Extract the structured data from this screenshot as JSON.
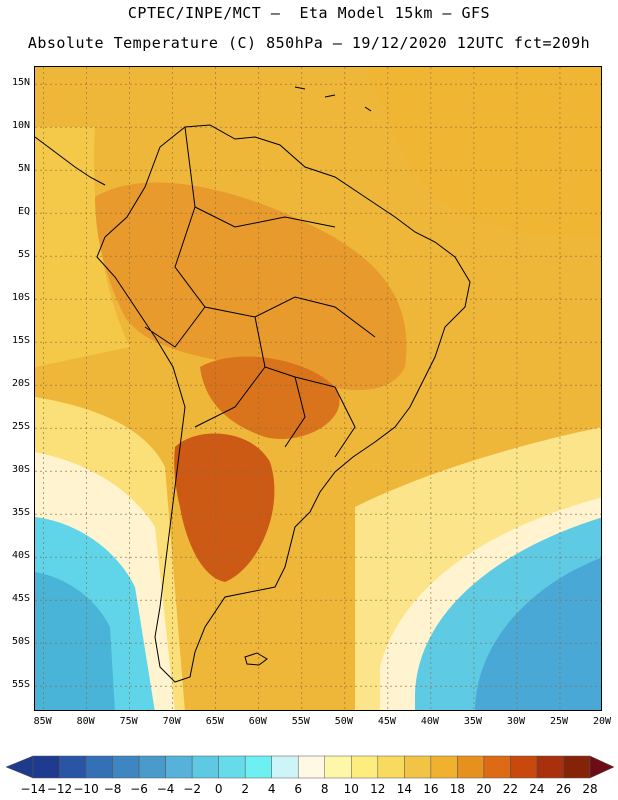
{
  "header": {
    "line1": "CPTEC/INPE/MCT –  Eta Model 15km – GFS",
    "line2": "Absolute Temperature (C) 850hPa – 19/12/2020 12UTC fct=209h"
  },
  "map": {
    "lat_labels": [
      "15N",
      "10N",
      "5N",
      "EQ",
      "5S",
      "10S",
      "15S",
      "20S",
      "25S",
      "30S",
      "35S",
      "40S",
      "45S",
      "50S",
      "55S"
    ],
    "lat_values": [
      15,
      10,
      5,
      0,
      -5,
      -10,
      -15,
      -20,
      -25,
      -30,
      -35,
      -40,
      -45,
      -50,
      -55
    ],
    "lon_labels": [
      "85W",
      "80W",
      "75W",
      "70W",
      "65W",
      "60W",
      "55W",
      "50W",
      "45W",
      "40W",
      "35W",
      "30W",
      "25W",
      "20W"
    ],
    "lon_values": [
      -85,
      -80,
      -75,
      -70,
      -65,
      -60,
      -55,
      -50,
      -45,
      -40,
      -35,
      -30,
      -25,
      -20
    ],
    "lat_range": [
      -58,
      17
    ],
    "lon_range": [
      -86,
      -20
    ],
    "background_color": "#eeb73a"
  },
  "colorbar": {
    "labels": [
      "-14",
      "-12",
      "-10",
      "-8",
      "-6",
      "-4",
      "-2",
      "0",
      "2",
      "4",
      "6",
      "8",
      "10",
      "12",
      "14",
      "16",
      "18",
      "20",
      "22",
      "24",
      "26",
      "28"
    ],
    "colors": [
      "#1f3b8f",
      "#2a55a5",
      "#3370b5",
      "#3d86c2",
      "#4a9bcc",
      "#56b2d8",
      "#5ec9e2",
      "#66dcea",
      "#6ef0f2",
      "#cdf5f8",
      "#fff8e4",
      "#fff7a8",
      "#fdec7e",
      "#f8da5e",
      "#f2c445",
      "#efb12e",
      "#e6911f",
      "#dd6a14",
      "#c8480e",
      "#a8300c",
      "#852308"
    ],
    "left_arrow_color": "#1e3a8a",
    "right_arrow_color": "#6b0d14"
  },
  "regions": [
    {
      "name": "north-atlantic-warm",
      "color": "#f1b534"
    },
    {
      "name": "amazon-warm",
      "color": "#e89a2c"
    },
    {
      "name": "chaco-hot",
      "color": "#d9741c"
    },
    {
      "name": "patagonia-hot",
      "color": "#cc5a14"
    },
    {
      "name": "tropical-pacific-mild",
      "color": "#f4c94a"
    },
    {
      "name": "south-pacific-pale",
      "color": "#fbe07a"
    },
    {
      "name": "south-pacific-cream",
      "color": "#fff4cf"
    },
    {
      "name": "south-pacific-cold",
      "color": "#60d4e8"
    },
    {
      "name": "south-pacific-colder",
      "color": "#4ab3d8"
    },
    {
      "name": "south-atlantic-pale",
      "color": "#fce48a"
    },
    {
      "name": "south-atlantic-cream",
      "color": "#fff4cf"
    },
    {
      "name": "south-atlantic-cold",
      "color": "#5ecae4"
    },
    {
      "name": "south-atlantic-colder",
      "color": "#4aa8d6"
    }
  ]
}
